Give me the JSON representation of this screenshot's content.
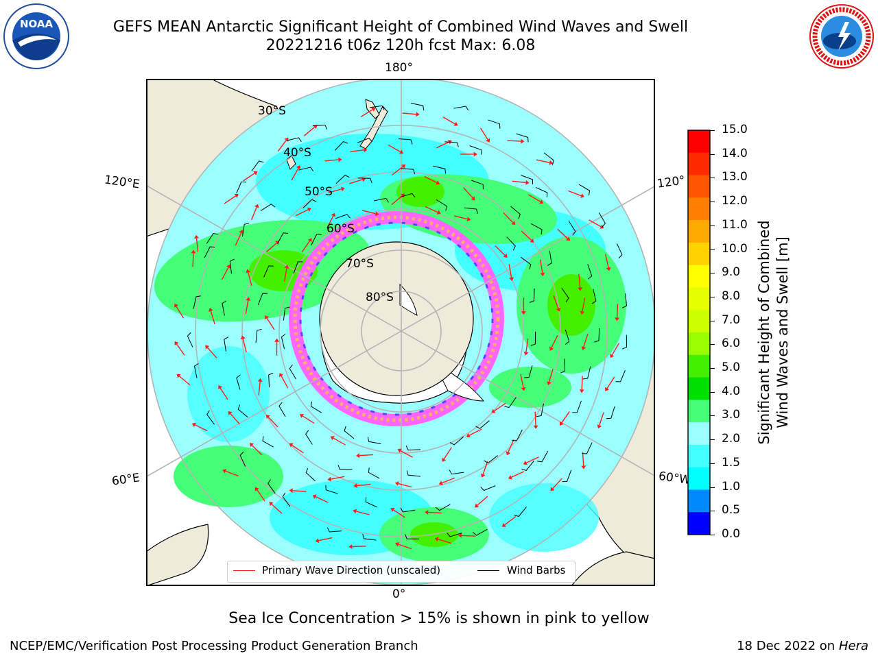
{
  "header": {
    "title_line1": "GEFS MEAN Antarctic Significant Height of Combined Wind Waves and Swell",
    "title_line2": "20221216 t06z 120h fcst   Max: 6.08",
    "noaa_logo_text": "NOAA",
    "noaa_ring_text": "NATIONAL OCEANIC AND ATMOSPHERIC ADMINISTRATION · U.S. DEPARTMENT OF COMMERCE",
    "nws_ring_text": "NATIONAL WEATHER SERVICE"
  },
  "map": {
    "lon_labels": {
      "top": "180°",
      "bottom": "0°",
      "upper_left": "120°E",
      "upper_right": "120°",
      "lower_left": "60°E",
      "lower_right": "60°W"
    },
    "lat_labels": [
      "30°S",
      "40°S",
      "50°S",
      "60°S",
      "70°S",
      "80°S"
    ],
    "legend": {
      "wave_dir": "Primary Wave Direction (unscaled)",
      "wind_barbs": "Wind Barbs"
    },
    "colors": {
      "land": "#efebdb",
      "ice_pink": "#ff66ff",
      "wave_arrow": "#ff1a1a",
      "grid": "#b4b4b4"
    }
  },
  "colorbar": {
    "title_line1": "Significant Height of Combined",
    "title_line2": "Wind Waves and Swell [m]",
    "ticks": [
      "15.0",
      "14.0",
      "13.0",
      "12.0",
      "11.0",
      "10.0",
      "9.0",
      "8.0",
      "7.0",
      "6.0",
      "5.0",
      "4.0",
      "3.0",
      "2.0",
      "1.5",
      "1.0",
      "0.5",
      "0.0"
    ],
    "colors_top_to_bottom": [
      "#ff0000",
      "#ff2a00",
      "#ff5500",
      "#ff7f00",
      "#ffaa00",
      "#ffd200",
      "#ffff00",
      "#e6ff00",
      "#ccff00",
      "#99ff00",
      "#44f000",
      "#00e000",
      "#44ff77",
      "#99ffff",
      "#44ffff",
      "#00ffff",
      "#0088ff",
      "#0000ff"
    ]
  },
  "footnote": "Sea Ice Concentration > 15% is shown in pink to yellow",
  "credits": {
    "left": "NCEP/EMC/Verification Post Processing Product Generation Branch",
    "right_date": "18 Dec 2022 on",
    "right_machine": "Hera"
  }
}
